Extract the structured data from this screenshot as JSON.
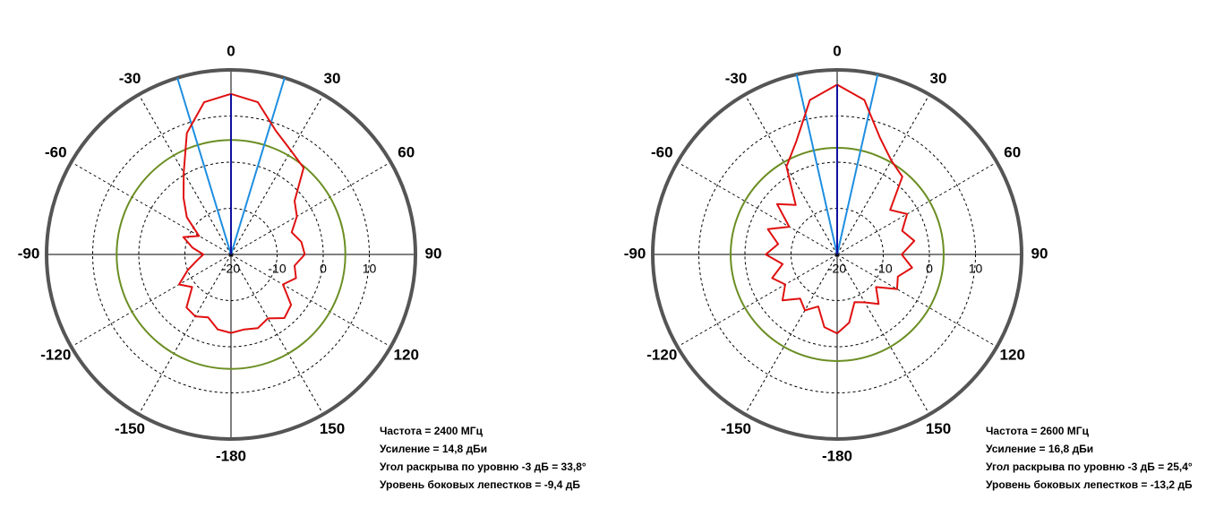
{
  "chart_data": [
    {
      "type": "polar",
      "theta": [
        -180,
        -170,
        -160,
        -150,
        -140,
        -130,
        -120,
        -110,
        -100,
        -90,
        -80,
        -70,
        -60,
        -50,
        -40,
        -30,
        -20,
        -10,
        0,
        10,
        20,
        30,
        40,
        50,
        60,
        70,
        80,
        90,
        100,
        110,
        120,
        130,
        140,
        150,
        160,
        170,
        180
      ],
      "values": [
        -3.0,
        -3.5,
        -5.5,
        -4.5,
        -5.0,
        -9,
        -7,
        -10,
        -12.5,
        -14,
        -11.5,
        -9,
        -12,
        -7.5,
        -4,
        0.5,
        8,
        13.5,
        14.8,
        13.5,
        8.5,
        6,
        4.5,
        -2,
        -3.5,
        -6,
        -4.5,
        -4,
        -6,
        -5,
        -7,
        -3,
        -2,
        -4,
        -3,
        -3.5,
        -3.0
      ],
      "color": "#e01010",
      "rlim": [
        -20,
        20
      ],
      "rticks": [
        -20,
        -10,
        0,
        10
      ],
      "thetaticks": [
        -180,
        -150,
        -120,
        -90,
        -60,
        -30,
        0,
        30,
        60,
        90,
        120,
        150
      ],
      "ref_circle": {
        "value": 4.8,
        "color": "#6b8e23"
      },
      "beam_lines": {
        "values": [
          -16.9,
          16.9
        ],
        "color": "#1e8ee0"
      },
      "main_direction": {
        "value": 0,
        "color": "#1010a0"
      },
      "annotations": [
        "Частота = 2400 МГц",
        "Усиление = 14,8 дБи",
        "Угол раскрыва по уровню -3 дБ = 33,8°",
        "Уровень боковых лепестков = -9,4 дБ"
      ]
    },
    {
      "type": "polar",
      "theta": [
        -180,
        -170,
        -160,
        -150,
        -140,
        -130,
        -120,
        -110,
        -100,
        -90,
        -80,
        -70,
        -60,
        -50,
        -40,
        -30,
        -20,
        -10,
        0,
        10,
        20,
        30,
        40,
        50,
        60,
        70,
        80,
        90,
        100,
        110,
        120,
        130,
        140,
        150,
        160,
        170,
        180
      ],
      "values": [
        -2.9,
        -4,
        -8,
        -6,
        -7.5,
        -4.5,
        -7,
        -5,
        -8,
        -4.5,
        -7,
        -4,
        -8,
        -3,
        -6,
        2,
        6,
        14,
        16.8,
        14,
        7,
        3.5,
        2,
        -5,
        -2.5,
        -5,
        -3,
        -6,
        -3.5,
        -6,
        -5,
        -9,
        -6,
        -8,
        -9,
        -5,
        -2.9
      ],
      "color": "#e01010",
      "rlim": [
        -20,
        20
      ],
      "rticks": [
        -20,
        -10,
        0,
        10
      ],
      "thetaticks": [
        -180,
        -150,
        -120,
        -90,
        -60,
        -30,
        0,
        30,
        60,
        90,
        120,
        150
      ],
      "ref_circle": {
        "value": 3.1,
        "color": "#6b8e23"
      },
      "beam_lines": {
        "values": [
          -12.7,
          12.7
        ],
        "color": "#1e8ee0"
      },
      "main_direction": {
        "value": 0,
        "color": "#1010a0"
      },
      "annotations": [
        "Частота = 2600 МГц",
        "Усиление = 16,8 дБи",
        "Угол раскрыва по уровню -3 дБ = 25,4°",
        "Уровень боковых лепестков = -13,2 дБ"
      ]
    }
  ]
}
